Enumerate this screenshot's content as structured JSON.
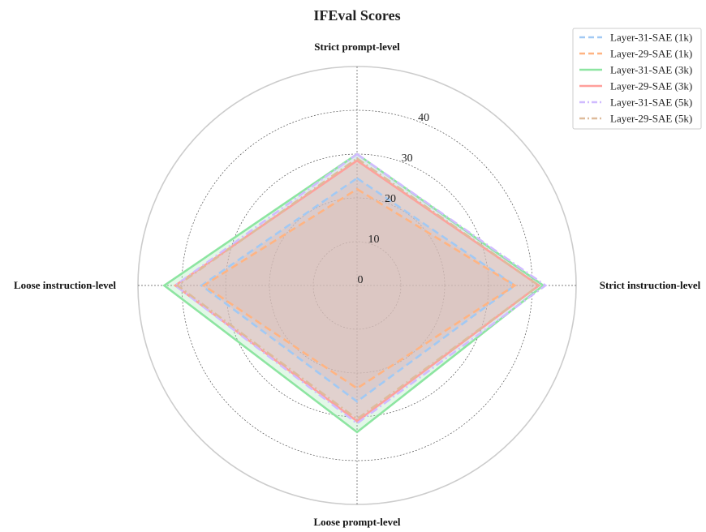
{
  "chart_data": {
    "type": "radar",
    "title": "IFEval Scores",
    "axes": [
      "Strict prompt-level",
      "Strict instruction-level",
      "Loose prompt-level",
      "Loose instruction-level"
    ],
    "radial_ticks": [
      0,
      10,
      20,
      30,
      40
    ],
    "rlim": [
      0,
      50
    ],
    "grid": true,
    "legend_position": "top-right",
    "series": [
      {
        "name": "Layer-31-SAE (1k)",
        "values": [
          24.5,
          36.0,
          26.5,
          35.5
        ],
        "color": "#a1c9f4",
        "linestyle": "dashed"
      },
      {
        "name": "Layer-29-SAE (1k)",
        "values": [
          22.0,
          36.0,
          23.5,
          35.0
        ],
        "color": "#ffb482",
        "linestyle": "dashed"
      },
      {
        "name": "Layer-31-SAE (3k)",
        "values": [
          30.0,
          42.5,
          33.5,
          44.0
        ],
        "color": "#8de5a1",
        "linestyle": "solid"
      },
      {
        "name": "Layer-29-SAE (3k)",
        "values": [
          28.5,
          41.5,
          31.0,
          41.5
        ],
        "color": "#ff9f9b",
        "linestyle": "solid"
      },
      {
        "name": "Layer-31-SAE (5k)",
        "values": [
          30.0,
          43.0,
          31.5,
          41.5
        ],
        "color": "#d0bbff",
        "linestyle": "dashdot"
      },
      {
        "name": "Layer-29-SAE (5k)",
        "values": [
          29.0,
          41.5,
          30.5,
          41.0
        ],
        "color": "#debb9b",
        "linestyle": "dashdot"
      }
    ]
  }
}
